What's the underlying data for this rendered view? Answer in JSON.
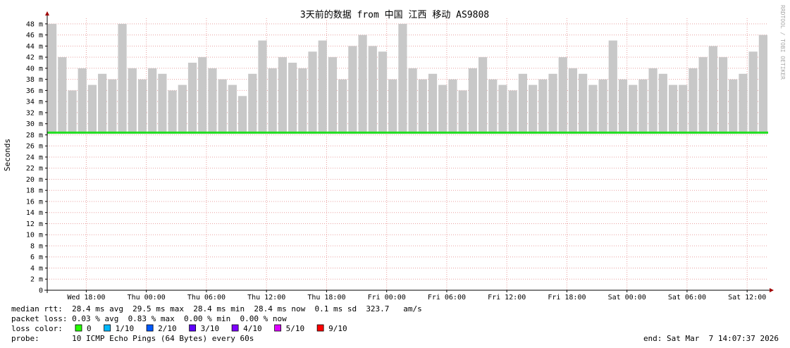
{
  "chart_data": {
    "type": "smoke",
    "title": "3天前的数据 from 中国 江西 移动 AS9808",
    "ylabel": "Seconds",
    "watermark": "RRDTOOL / TOBI OETIKER",
    "xlim": [
      0,
      72
    ],
    "ylim": [
      0,
      49
    ],
    "yticks": [
      {
        "value": 0,
        "label": "0"
      },
      {
        "value": 2,
        "label": "2 m"
      },
      {
        "value": 4,
        "label": "4 m"
      },
      {
        "value": 6,
        "label": "6 m"
      },
      {
        "value": 8,
        "label": "8 m"
      },
      {
        "value": 10,
        "label": "10 m"
      },
      {
        "value": 12,
        "label": "12 m"
      },
      {
        "value": 14,
        "label": "14 m"
      },
      {
        "value": 16,
        "label": "16 m"
      },
      {
        "value": 18,
        "label": "18 m"
      },
      {
        "value": 20,
        "label": "20 m"
      },
      {
        "value": 22,
        "label": "22 m"
      },
      {
        "value": 24,
        "label": "24 m"
      },
      {
        "value": 26,
        "label": "26 m"
      },
      {
        "value": 28,
        "label": "28 m"
      },
      {
        "value": 30,
        "label": "30 m"
      },
      {
        "value": 32,
        "label": "32 m"
      },
      {
        "value": 34,
        "label": "34 m"
      },
      {
        "value": 36,
        "label": "36 m"
      },
      {
        "value": 38,
        "label": "38 m"
      },
      {
        "value": 40,
        "label": "40 m"
      },
      {
        "value": 42,
        "label": "42 m"
      },
      {
        "value": 44,
        "label": "44 m"
      },
      {
        "value": 46,
        "label": "46 m"
      },
      {
        "value": 48,
        "label": "48 m"
      }
    ],
    "xticks": [
      {
        "value": 3.9,
        "label": "Wed 18:00"
      },
      {
        "value": 9.9,
        "label": "Thu 00:00"
      },
      {
        "value": 15.9,
        "label": "Thu 06:00"
      },
      {
        "value": 21.9,
        "label": "Thu 12:00"
      },
      {
        "value": 27.9,
        "label": "Thu 18:00"
      },
      {
        "value": 33.9,
        "label": "Fri 00:00"
      },
      {
        "value": 39.9,
        "label": "Fri 06:00"
      },
      {
        "value": 45.9,
        "label": "Fri 12:00"
      },
      {
        "value": 51.9,
        "label": "Fri 18:00"
      },
      {
        "value": 57.9,
        "label": "Sat 00:00"
      },
      {
        "value": 63.9,
        "label": "Sat 06:00"
      },
      {
        "value": 69.9,
        "label": "Sat 12:00"
      }
    ],
    "grid": true,
    "x": [
      0,
      1,
      2,
      3,
      4,
      5,
      6,
      7,
      8,
      9,
      10,
      11,
      12,
      13,
      14,
      15,
      16,
      17,
      18,
      19,
      20,
      21,
      22,
      23,
      24,
      25,
      26,
      27,
      28,
      29,
      30,
      31,
      32,
      33,
      34,
      35,
      36,
      37,
      38,
      39,
      40,
      41,
      42,
      43,
      44,
      45,
      46,
      47,
      48,
      49,
      50,
      51,
      52,
      53,
      54,
      55,
      56,
      57,
      58,
      59,
      60,
      61,
      62,
      63,
      64,
      65,
      66,
      67,
      68,
      69,
      70,
      71
    ],
    "smoke": {
      "color": "#c8c8c8",
      "bottom": 28.2,
      "values": [
        48,
        42,
        36,
        40,
        37,
        39,
        38,
        48,
        40,
        38,
        40,
        39,
        36,
        37,
        41,
        42,
        40,
        38,
        37,
        35,
        39,
        45,
        40,
        42,
        41,
        40,
        43,
        45,
        42,
        38,
        44,
        46,
        44,
        43,
        38,
        48,
        40,
        38,
        39,
        37,
        38,
        36,
        40,
        42,
        38,
        37,
        36,
        39,
        37,
        38,
        39,
        42,
        40,
        39,
        37,
        38,
        45,
        38,
        37,
        38,
        40,
        39,
        37,
        37,
        40,
        42,
        44,
        42,
        38,
        39,
        43,
        46
      ]
    },
    "series": [
      {
        "name": "median rtt",
        "color": "#20e020",
        "values": [
          28.4,
          28.4,
          28.4,
          28.4,
          28.4,
          28.4,
          28.4,
          28.4,
          28.4,
          28.4,
          28.4,
          28.4,
          28.4,
          28.4,
          28.4,
          28.4,
          28.4,
          28.4,
          28.4,
          28.4,
          28.4,
          28.4,
          28.4,
          28.4,
          28.4,
          28.4,
          28.4,
          28.4,
          28.4,
          28.4,
          28.4,
          28.4,
          28.4,
          28.4,
          28.4,
          28.4,
          28.4,
          28.4,
          28.4,
          28.4,
          28.4,
          28.4,
          28.4,
          28.4,
          28.4,
          28.4,
          28.4,
          28.4,
          28.4,
          28.4,
          28.4,
          28.4,
          28.4,
          28.4,
          28.4,
          28.4,
          28.4,
          28.4,
          28.4,
          28.4,
          28.4,
          28.4,
          28.4,
          28.4,
          28.4,
          28.4,
          28.4,
          28.4,
          28.4,
          28.4,
          28.4,
          28.4
        ]
      }
    ],
    "stats": [
      "median rtt:  28.4 ms avg  29.5 ms max  28.4 ms min  28.4 ms now  0.1 ms sd  323.7   am/s",
      "packet loss: 0.03 % avg  0.83 % max  0.00 % min  0.00 % now"
    ],
    "loss_label": "loss color:",
    "loss_colors": [
      {
        "name": "0",
        "color": "#26ff00"
      },
      {
        "name": "1/10",
        "color": "#00b8ff"
      },
      {
        "name": "2/10",
        "color": "#0059ff"
      },
      {
        "name": "3/10",
        "color": "#5e00ff"
      },
      {
        "name": "4/10",
        "color": "#7e00ff"
      },
      {
        "name": "5/10",
        "color": "#dd00ff"
      },
      {
        "name": "9/10",
        "color": "#ff0000"
      }
    ],
    "probe": "probe:       10 ICMP Echo Pings (64 Bytes) every 60s",
    "end": "end: Sat Mar  7 14:07:37 2026"
  }
}
